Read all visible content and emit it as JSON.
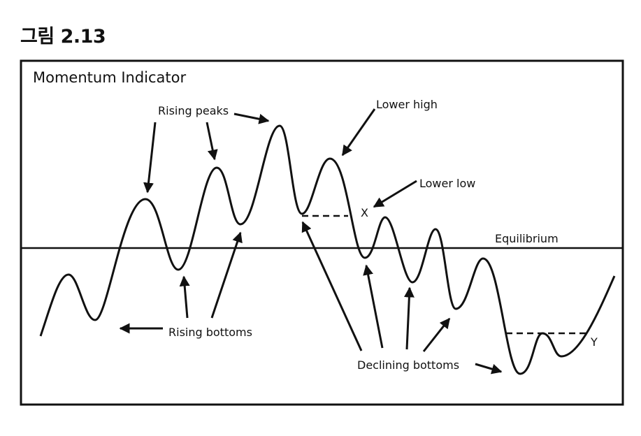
{
  "figure_label": "그림 2.13",
  "title": "Momentum Indicator",
  "labels": {
    "rising_peaks": "Rising peaks",
    "lower_high": "Lower high",
    "lower_low": "Lower low",
    "x_marker": "X",
    "equilibrium": "Equilibrium",
    "rising_bottoms": "Rising bottoms",
    "declining_bottoms": "Declining bottoms",
    "y_marker": "Y"
  },
  "colors": {
    "ink": "#111111",
    "background": "#ffffff"
  }
}
